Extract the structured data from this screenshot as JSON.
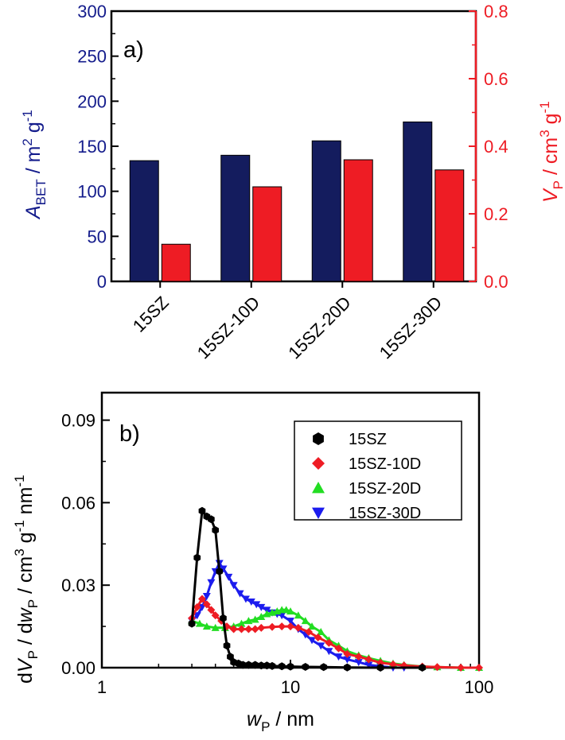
{
  "chart_data": [
    {
      "type": "bar",
      "panel_label": "a)",
      "categories": [
        "15SZ",
        "15SZ-10D",
        "15SZ-20D",
        "15SZ-30D"
      ],
      "series": [
        {
          "values": [
            134,
            140,
            156,
            177
          ],
          "axis": "left",
          "color": "#141C5E"
        },
        {
          "values": [
            0.11,
            0.28,
            0.36,
            0.33
          ],
          "axis": "right",
          "color": "#EE1C24"
        }
      ],
      "ylabel_left": {
        "main": "A",
        "sub": "BET",
        "rest": " / m",
        "sup1": "2",
        "rest2": " g",
        "sup2": "-1"
      },
      "ylabel_right": {
        "main": "V",
        "sub": "P",
        "rest": " / cm",
        "sup1": "3",
        "rest2": " g",
        "sup2": "-1"
      },
      "ylim_left": [
        0,
        300
      ],
      "ylim_right": [
        0,
        0.8
      ],
      "yticks_left": [
        "0",
        "50",
        "100",
        "150",
        "200",
        "250",
        "300"
      ],
      "yticks_right": [
        "0.0",
        "0.2",
        "0.4",
        "0.6",
        "0.8"
      ],
      "left_color": "#141C8C",
      "right_color": "#EE1C24"
    },
    {
      "type": "line",
      "panel_label": "b)",
      "xscale": "log",
      "xlim": [
        1,
        100
      ],
      "ylim": [
        0,
        0.1
      ],
      "xticks": [
        "1",
        "10",
        "100"
      ],
      "yticks": [
        "0.00",
        "0.03",
        "0.06",
        "0.09"
      ],
      "xlabel": {
        "main": "w",
        "sub": "P",
        "rest": " / nm"
      },
      "ylabel": {
        "p1": "d",
        "main1": "V",
        "sub1": "P",
        "p2": " / d",
        "main2": "w",
        "sub2": "P",
        "p3": " / cm",
        "sup1": "3",
        "p4": " g",
        "sup2": "-1",
        "p5": " nm",
        "sup3": "-1"
      },
      "legend_position": "top-right",
      "series": [
        {
          "name": "15SZ",
          "color": "#000000",
          "marker": "hexagon",
          "x": [
            3.0,
            3.2,
            3.4,
            3.6,
            3.8,
            4.0,
            4.2,
            4.4,
            4.6,
            4.8,
            5.0,
            5.3,
            5.6,
            6.0,
            6.5,
            7.0,
            7.5,
            8.0,
            9.0,
            10.0,
            12.0,
            15.0,
            20.0,
            30.0,
            50.0
          ],
          "y": [
            0.016,
            0.04,
            0.057,
            0.055,
            0.054,
            0.05,
            0.035,
            0.018,
            0.008,
            0.004,
            0.002,
            0.0015,
            0.001,
            0.001,
            0.001,
            0.0008,
            0.0008,
            0.0006,
            0.0005,
            0.0004,
            0.0003,
            0.0002,
            0.0001,
            0.0,
            0.0
          ]
        },
        {
          "name": "15SZ-10D",
          "color": "#EE1C24",
          "marker": "diamond",
          "x": [
            3.0,
            3.2,
            3.4,
            3.6,
            3.8,
            4.0,
            4.3,
            4.6,
            5.0,
            5.5,
            6.0,
            6.5,
            7.0,
            8.0,
            9.0,
            10.0,
            11.0,
            12.5,
            14.0,
            16.0,
            18.0,
            20.0,
            23.0,
            26.0,
            30.0,
            35.0,
            40.0,
            50.0,
            60.0,
            80.0,
            100.0
          ],
          "y": [
            0.018,
            0.022,
            0.025,
            0.023,
            0.021,
            0.019,
            0.017,
            0.015,
            0.014,
            0.014,
            0.014,
            0.014,
            0.0145,
            0.0148,
            0.015,
            0.015,
            0.0145,
            0.013,
            0.011,
            0.009,
            0.007,
            0.005,
            0.004,
            0.003,
            0.0018,
            0.0012,
            0.0008,
            0.0004,
            0.0002,
            0.0,
            0.0
          ]
        },
        {
          "name": "15SZ-20D",
          "color": "#22DD22",
          "marker": "triangle-up",
          "x": [
            3.0,
            3.3,
            3.6,
            4.0,
            4.5,
            5.0,
            5.5,
            6.0,
            6.5,
            7.0,
            7.5,
            8.0,
            8.5,
            9.0,
            9.5,
            10.0,
            11.0,
            12.0,
            13.0,
            14.5,
            16.0,
            18.0,
            20.0,
            23.0,
            26.0,
            30.0,
            35.0,
            40.0,
            50.0,
            60.0,
            80.0,
            100.0
          ],
          "y": [
            0.017,
            0.016,
            0.015,
            0.0145,
            0.0145,
            0.015,
            0.016,
            0.017,
            0.0175,
            0.0185,
            0.0195,
            0.02,
            0.0205,
            0.021,
            0.021,
            0.0205,
            0.019,
            0.017,
            0.015,
            0.013,
            0.01,
            0.008,
            0.006,
            0.0045,
            0.0035,
            0.0025,
            0.0015,
            0.001,
            0.0004,
            0.0002,
            0.0,
            0.0
          ]
        },
        {
          "name": "15SZ-30D",
          "color": "#1C1CEE",
          "marker": "triangle-down",
          "x": [
            3.0,
            3.2,
            3.4,
            3.6,
            3.8,
            4.0,
            4.2,
            4.4,
            4.7,
            5.0,
            5.4,
            5.8,
            6.2,
            6.6,
            7.0,
            7.5,
            8.0,
            8.5,
            9.0,
            10.0,
            11.0,
            12.0,
            13.0,
            14.5,
            16.0,
            18.0,
            20.0,
            23.0,
            26.0,
            30.0,
            35.0,
            40.0
          ],
          "y": [
            0.017,
            0.019,
            0.022,
            0.026,
            0.031,
            0.035,
            0.038,
            0.036,
            0.033,
            0.03,
            0.027,
            0.025,
            0.024,
            0.023,
            0.022,
            0.021,
            0.02,
            0.0195,
            0.019,
            0.017,
            0.014,
            0.012,
            0.01,
            0.008,
            0.006,
            0.004,
            0.003,
            0.002,
            0.001,
            0.0005,
            0.0,
            0.0
          ]
        }
      ]
    }
  ]
}
